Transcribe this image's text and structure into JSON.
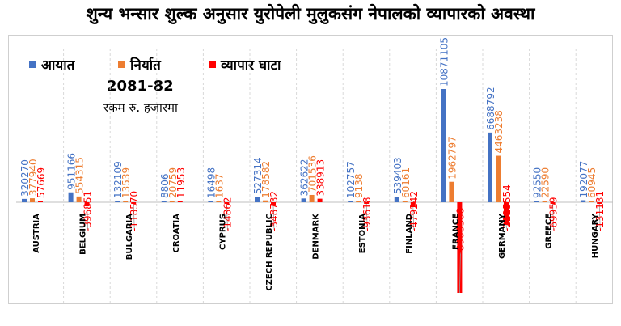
{
  "header": {
    "title": "शुन्य भन्सार शुल्क अनुसार युरोपेली मुलुकसंग नेपालको व्यापारको अवस्था"
  },
  "legend": {
    "import_label": "आयात",
    "export_label": "निर्यात",
    "deficit_label": "व्यापार घाटा"
  },
  "period": "2081-82",
  "unit": "रकम रु. हजारमा",
  "colors": {
    "import": "#4472c4",
    "export": "#ed7d31",
    "deficit": "#ff0000"
  },
  "chart_data": {
    "type": "bar",
    "categories": [
      "AUSTRIA",
      "BELGIUM",
      "BULGARIA",
      "CROATIA",
      "CYPRUS",
      "CZECH REPUBLIC",
      "DENMARK",
      "ESTONIA",
      "FINLAND",
      "FRANCE",
      "GERMANY",
      "GREECE",
      "HUNGARY"
    ],
    "series": [
      {
        "name": "आयात",
        "values": [
          320270,
          951166,
          132109,
          8806,
          16498,
          527314,
          362622,
          102757,
          539403,
          10871105,
          6688792,
          92550,
          192077
        ]
      },
      {
        "name": "निर्यात",
        "values": [
          377940,
          554315,
          13539,
          20759,
          1637,
          178582,
          701536,
          9138,
          60161,
          1962797,
          4463238,
          22590,
          60945
        ]
      },
      {
        "name": "व्यापार घाटा",
        "values": [
          57669,
          -396851,
          -118570,
          11953,
          -14862,
          -348732,
          338913,
          -93618,
          -479242,
          -8908308,
          -2225554,
          -69959,
          -131131
        ]
      }
    ]
  }
}
